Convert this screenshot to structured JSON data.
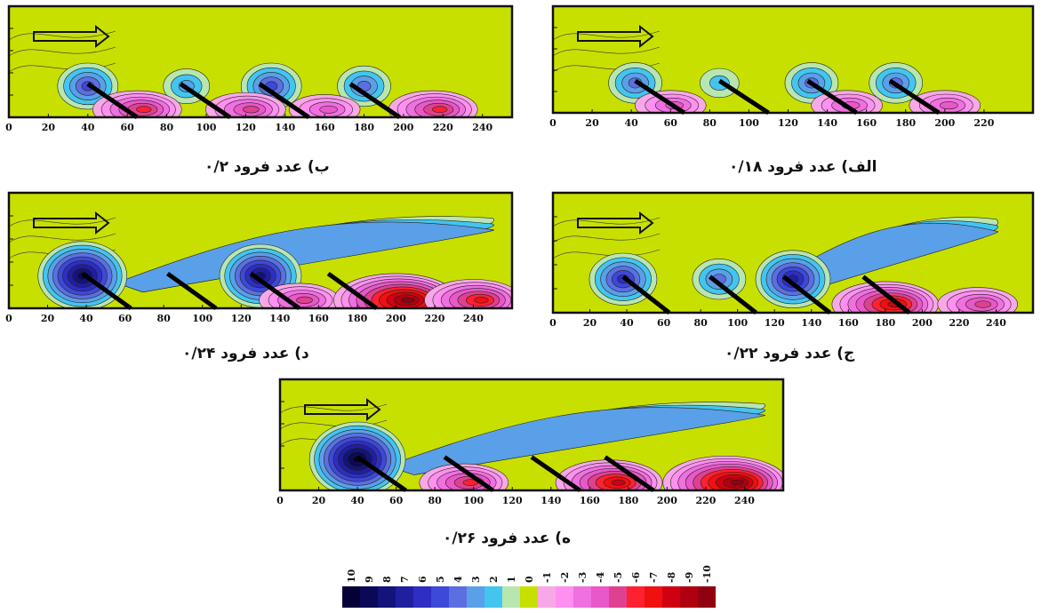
{
  "chart_data": [
    {
      "id": "alef",
      "type": "heatmap",
      "caption": "الف) عدد فرود ۰/۱۸",
      "x_ticks": [
        "0",
        "20",
        "40",
        "60",
        "80",
        "100",
        "120",
        "140",
        "160",
        "180",
        "200",
        "220"
      ],
      "xlim": [
        0,
        245
      ],
      "features": [
        {
          "x": 42,
          "level": 4
        },
        {
          "x": 85,
          "level": 2
        },
        {
          "x": 132,
          "level": 4
        },
        {
          "x": 175,
          "level": 4
        },
        {
          "x": 60,
          "level": -4
        },
        {
          "x": 150,
          "level": -4
        },
        {
          "x": 200,
          "level": -4
        }
      ],
      "wakes": [],
      "groins_start_x": [
        42,
        85,
        130,
        172
      ]
    },
    {
      "id": "be",
      "type": "heatmap",
      "caption": "ب) عدد فرود ۰/۲",
      "x_ticks": [
        "0",
        "20",
        "40",
        "60",
        "80",
        "100",
        "120",
        "140",
        "160",
        "180",
        "200",
        "220",
        "240"
      ],
      "xlim": [
        0,
        255
      ],
      "features": [
        {
          "x": 40,
          "level": 5
        },
        {
          "x": 90,
          "level": 3
        },
        {
          "x": 133,
          "level": 5
        },
        {
          "x": 180,
          "level": 4
        },
        {
          "x": 65,
          "level": -6
        },
        {
          "x": 120,
          "level": -5
        },
        {
          "x": 160,
          "level": -4
        },
        {
          "x": 215,
          "level": -6
        }
      ],
      "wakes": [],
      "groins_start_x": [
        40,
        87,
        127,
        173
      ]
    },
    {
      "id": "jim",
      "type": "heatmap",
      "caption": "ج) عدد فرود ۰/۲۲",
      "x_ticks": [
        "0",
        "20",
        "40",
        "60",
        "80",
        "100",
        "120",
        "140",
        "160",
        "180",
        "200",
        "220",
        "240"
      ],
      "xlim": [
        0,
        260
      ],
      "features": [
        {
          "x": 38,
          "level": 6
        },
        {
          "x": 90,
          "level": 4
        },
        {
          "x": 130,
          "level": 7
        },
        {
          "x": 180,
          "level": -8
        },
        {
          "x": 230,
          "level": -5
        }
      ],
      "wakes": [
        {
          "x0": 120,
          "x1": 240,
          "level": 3
        }
      ],
      "groins_start_x": [
        38,
        85,
        125,
        168
      ]
    },
    {
      "id": "dal",
      "type": "heatmap",
      "caption": "د) عدد فرود ۰/۲۴",
      "x_ticks": [
        "0",
        "20",
        "40",
        "60",
        "80",
        "100",
        "120",
        "140",
        "160",
        "180",
        "200",
        "220",
        "240"
      ],
      "xlim": [
        0,
        260
      ],
      "features": [
        {
          "x": 38,
          "level": 9
        },
        {
          "x": 130,
          "level": 8
        },
        {
          "x": 150,
          "level": -5
        },
        {
          "x": 200,
          "level": -10
        },
        {
          "x": 240,
          "level": -7
        }
      ],
      "wakes": [
        {
          "x0": 60,
          "x1": 250,
          "level": 3
        }
      ],
      "groins_start_x": [
        38,
        82,
        125,
        165
      ]
    },
    {
      "id": "he",
      "type": "heatmap",
      "caption": "ه) عدد فرود ۰/۲۶",
      "x_ticks": [
        "0",
        "20",
        "40",
        "60",
        "80",
        "100",
        "120",
        "140",
        "160",
        "180",
        "200",
        "220",
        "240"
      ],
      "xlim": [
        0,
        260
      ],
      "features": [
        {
          "x": 40,
          "level": 10
        },
        {
          "x": 95,
          "level": -6
        },
        {
          "x": 170,
          "level": -8
        },
        {
          "x": 230,
          "level": -10
        }
      ],
      "wakes": [
        {
          "x0": 60,
          "x1": 250,
          "level": 3
        }
      ],
      "groins_start_x": [
        40,
        85,
        130,
        168
      ]
    }
  ],
  "colorbar": {
    "labels": [
      "10",
      "9",
      "8",
      "7",
      "6",
      "5",
      "4",
      "3",
      "2",
      "1",
      "0",
      "-1",
      "-2",
      "-3",
      "-4",
      "-5",
      "-6",
      "-7",
      "-8",
      "-9",
      "-10"
    ],
    "colors": [
      "#060038",
      "#0b0858",
      "#13137a",
      "#1f1fa0",
      "#2e2ec4",
      "#3d49d8",
      "#5c6fe0",
      "#5aa0e8",
      "#43c5f0",
      "#b8e6b0",
      "#c8e000",
      "#f8a8e6",
      "#ff90f0",
      "#f070e0",
      "#e858c8",
      "#e04090",
      "#ff2030",
      "#f01010",
      "#d00010",
      "#b00010",
      "#900010"
    ]
  },
  "flow_arrow": "arrow-icon"
}
